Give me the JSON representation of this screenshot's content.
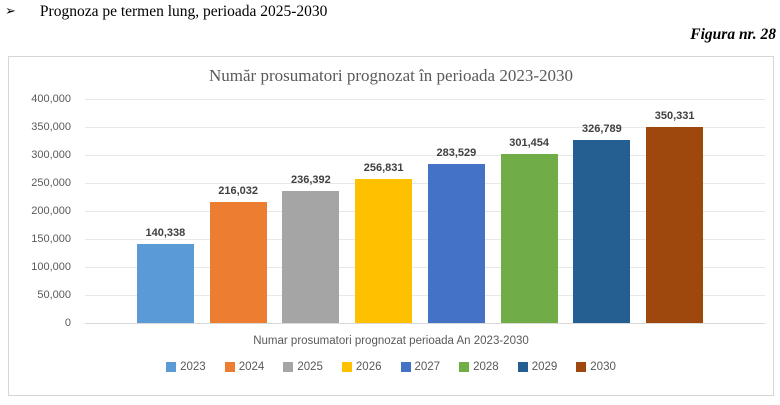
{
  "page": {
    "heading_bullet": "➢",
    "heading": "Prognoza pe termen lung, perioada 2025-2030",
    "figure_caption": "Figura nr. 28"
  },
  "chart_data": {
    "type": "bar",
    "title": "Număr prosumatori prognozat în perioada 2023-2030",
    "xlabel": "Numar prosumatori prognozat perioada An 2023-2030",
    "ylabel": "",
    "categories": [
      "2023",
      "2024",
      "2025",
      "2026",
      "2027",
      "2028",
      "2029",
      "2030"
    ],
    "values": [
      140338,
      216032,
      236392,
      256831,
      283529,
      301454,
      326789,
      350331
    ],
    "colors": [
      "#5B9BD5",
      "#ED7D31",
      "#A5A5A5",
      "#FFC000",
      "#4472C4",
      "#70AD47",
      "#255E91",
      "#9E480E"
    ],
    "ylim": [
      0,
      400000
    ],
    "ytick_step": 50000,
    "grid": true,
    "data_labels": true,
    "legend_position": "bottom"
  }
}
